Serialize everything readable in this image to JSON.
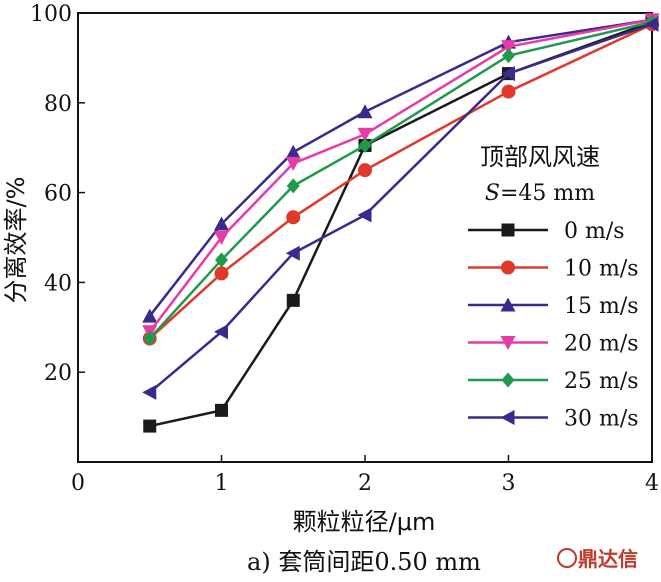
{
  "chart_data": {
    "type": "line",
    "xlabel": "颗粒粒径/μm",
    "ylabel": "分离效率/%",
    "caption": "a) 套筒间距0.50 mm",
    "watermark": "鼎达信",
    "xlim": [
      0,
      4
    ],
    "ylim": [
      0,
      100
    ],
    "xticks": [
      0,
      1,
      2,
      3,
      4
    ],
    "yticks": [
      20,
      40,
      60,
      80,
      100
    ],
    "legend": {
      "title_line1": "顶部风风速",
      "title_line2_var": "S",
      "title_line2_rest": "=45 mm",
      "position": "right"
    },
    "x": [
      0.5,
      1,
      1.5,
      2,
      3,
      4
    ],
    "series": [
      {
        "name": "0 m/s",
        "color": "#1a1a1a",
        "marker": "square",
        "values": [
          8,
          11.5,
          36,
          70.5,
          86.5,
          98
        ]
      },
      {
        "name": "10 m/s",
        "color": "#e0392b",
        "marker": "circle",
        "values": [
          27.5,
          42,
          54.5,
          65,
          82.5,
          97.5
        ]
      },
      {
        "name": "15 m/s",
        "color": "#3a2a8c",
        "marker": "triangle-up",
        "values": [
          32.5,
          53,
          69,
          78,
          93.5,
          98.5
        ]
      },
      {
        "name": "20 m/s",
        "color": "#e83aa8",
        "marker": "triangle-down",
        "values": [
          29,
          50,
          66.5,
          73,
          92.5,
          98.5
        ]
      },
      {
        "name": "25 m/s",
        "color": "#1f9a4a",
        "marker": "diamond",
        "values": [
          27.5,
          45,
          61.5,
          70.5,
          90.5,
          98
        ]
      },
      {
        "name": "30 m/s",
        "color": "#3a2a8c",
        "marker": "triangle-left",
        "values": [
          15.5,
          29,
          46.5,
          55,
          86.5,
          97.5
        ]
      }
    ]
  }
}
